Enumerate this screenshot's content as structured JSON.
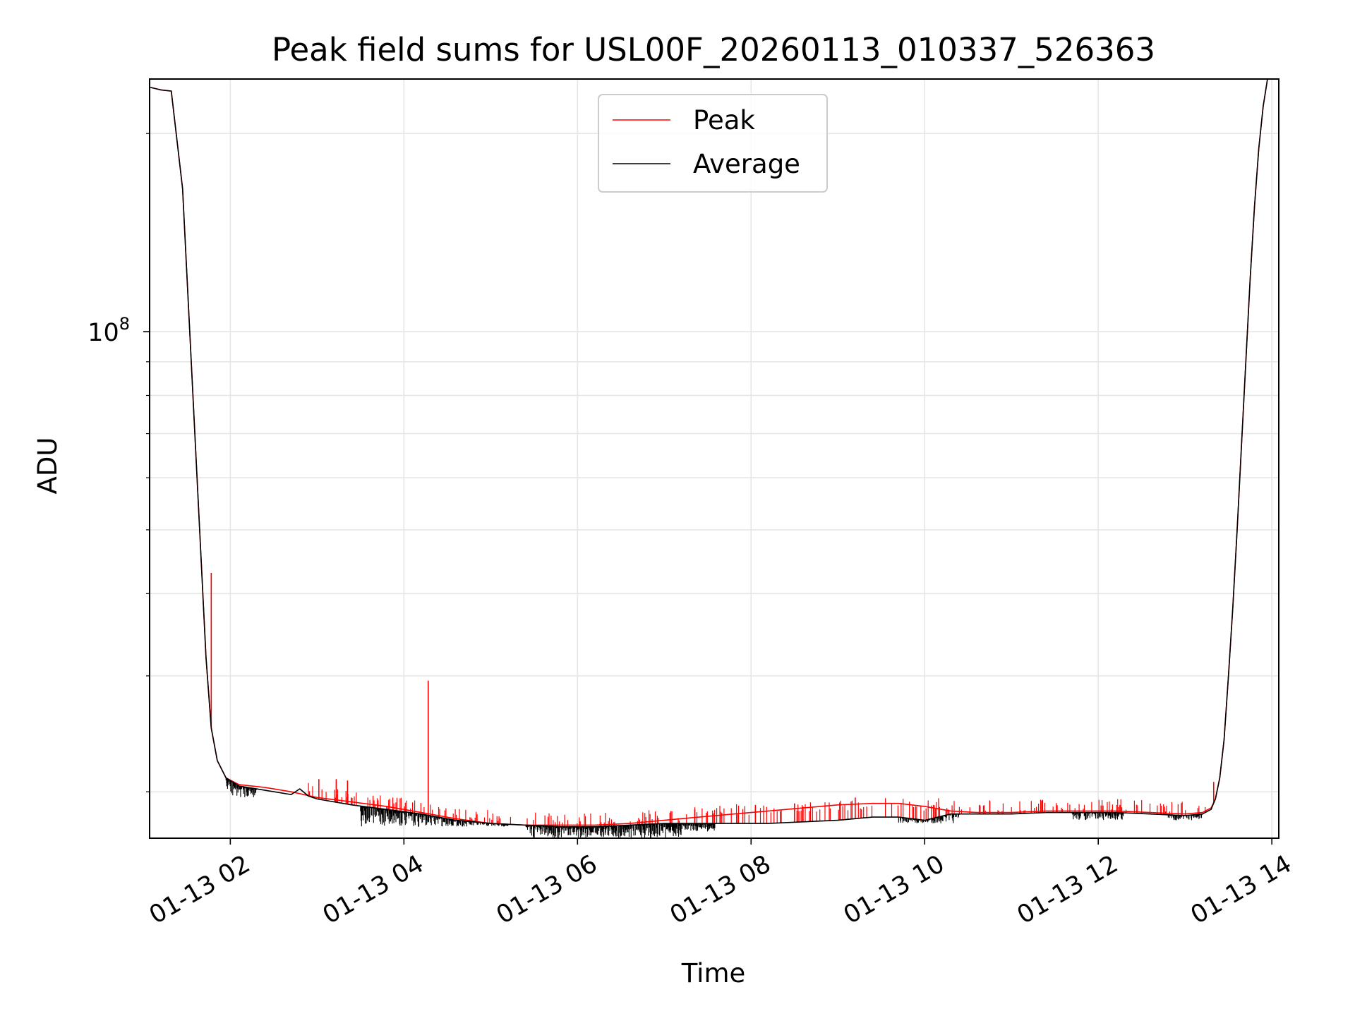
{
  "chart_data": {
    "type": "line",
    "title": "Peak field sums for USL00F_20260113_010337_526363",
    "xlabel": "Time",
    "ylabel": "ADU",
    "yscale": "log",
    "xlim": [
      1.07,
      14.08
    ],
    "ylim": [
      17000000.0,
      242000000.0
    ],
    "x_unit": "hours since 2026-01-13 00:00",
    "xticks": [
      {
        "value": 2,
        "label": "01-13 02"
      },
      {
        "value": 4,
        "label": "01-13 04"
      },
      {
        "value": 6,
        "label": "01-13 06"
      },
      {
        "value": 8,
        "label": "01-13 08"
      },
      {
        "value": 10,
        "label": "01-13 10"
      },
      {
        "value": 12,
        "label": "01-13 12"
      },
      {
        "value": 14,
        "label": "01-13 14"
      }
    ],
    "yticks_major": [
      {
        "value": 100000000,
        "base": "10",
        "exp": "8"
      }
    ],
    "yticks_minor": [
      20000000.0,
      30000000.0,
      40000000.0,
      50000000.0,
      60000000.0,
      70000000.0,
      80000000.0,
      90000000.0,
      200000000.0
    ],
    "grid": true,
    "legend": {
      "position": "upper center",
      "entries": [
        "Peak",
        "Average"
      ]
    },
    "series": [
      {
        "name": "Peak",
        "color": "#ff0000",
        "x": [
          1.08,
          1.2,
          1.32,
          1.45,
          1.55,
          1.65,
          1.72,
          1.78,
          1.85,
          1.95,
          2.1,
          2.4,
          2.7,
          3.0,
          3.4,
          3.8,
          4.2,
          4.6,
          5.0,
          5.4,
          5.8,
          6.2,
          6.6,
          7.0,
          7.4,
          7.8,
          8.2,
          8.6,
          9.0,
          9.4,
          9.7,
          10.0,
          10.3,
          10.6,
          11.0,
          11.4,
          11.8,
          12.2,
          12.6,
          13.0,
          13.2,
          13.3,
          13.35,
          13.4,
          13.45,
          13.5,
          13.55,
          13.6,
          13.65,
          13.7,
          13.75,
          13.8,
          13.85,
          13.9,
          13.95
        ],
        "values": [
          235000000,
          233000000,
          232000000,
          165000000,
          90000000,
          49000000,
          32000000,
          25000000,
          22300000,
          21000000,
          20500000,
          20300000,
          20000000,
          19600000,
          19300000,
          19000000,
          18600000,
          18200000,
          17900000,
          17800000,
          17800000,
          17800000,
          17900000,
          18100000,
          18300000,
          18500000,
          18700000,
          18900000,
          19100000,
          19200000,
          19200000,
          19000000,
          18700000,
          18600000,
          18600000,
          18700000,
          18700000,
          18700000,
          18600000,
          18500000,
          18600000,
          18900000,
          19500000,
          21000000,
          24000000,
          30000000,
          38000000,
          50000000,
          67000000,
          90000000,
          120000000,
          155000000,
          190000000,
          220000000,
          242000000
        ],
        "spikes": [
          {
            "x": 1.78,
            "value": 43000000
          },
          {
            "x": 4.28,
            "value": 29500000
          },
          {
            "x": 3.02,
            "value": 20900000
          },
          {
            "x": 3.22,
            "value": 20900000
          },
          {
            "x": 3.35,
            "value": 20800000
          },
          {
            "x": 7.35,
            "value": 18800000
          },
          {
            "x": 8.05,
            "value": 19100000
          },
          {
            "x": 8.5,
            "value": 19200000
          },
          {
            "x": 9.2,
            "value": 19600000
          },
          {
            "x": 10.75,
            "value": 19400000
          },
          {
            "x": 11.35,
            "value": 19400000
          },
          {
            "x": 12.25,
            "value": 19100000
          },
          {
            "x": 13.33,
            "value": 20700000
          }
        ]
      },
      {
        "name": "Average",
        "color": "#000000",
        "x": [
          1.08,
          1.2,
          1.32,
          1.45,
          1.55,
          1.65,
          1.72,
          1.78,
          1.85,
          1.95,
          2.1,
          2.4,
          2.7,
          2.8,
          2.9,
          3.0,
          3.4,
          3.8,
          4.2,
          4.6,
          5.0,
          5.4,
          5.8,
          6.2,
          6.6,
          7.0,
          7.4,
          7.8,
          8.2,
          8.6,
          9.0,
          9.4,
          9.7,
          10.0,
          10.3,
          10.6,
          11.0,
          11.4,
          11.8,
          12.2,
          12.6,
          13.0,
          13.2,
          13.3,
          13.35,
          13.4,
          13.45,
          13.5,
          13.55,
          13.6,
          13.65,
          13.7,
          13.75,
          13.8,
          13.85,
          13.9,
          13.95
        ],
        "values": [
          235000000,
          233000000,
          232000000,
          165000000,
          90000000,
          49000000,
          32000000,
          25000000,
          22300000,
          21000000,
          20400000,
          20100000,
          19800000,
          20200000,
          19700000,
          19500000,
          19100000,
          18800000,
          18500000,
          18100000,
          17900000,
          17800000,
          17700000,
          17700000,
          17800000,
          17900000,
          17900000,
          17900000,
          17900000,
          18000000,
          18100000,
          18300000,
          18300000,
          18100000,
          18500000,
          18500000,
          18500000,
          18600000,
          18600000,
          18600000,
          18500000,
          18400000,
          18500000,
          18800000,
          19500000,
          21000000,
          24000000,
          30000000,
          38000000,
          50000000,
          67000000,
          90000000,
          120000000,
          155000000,
          190000000,
          220000000,
          242000000
        ],
        "noise_band": [
          {
            "x_start": 1.95,
            "x_end": 2.3,
            "low": 19600000
          },
          {
            "x_start": 3.5,
            "x_end": 5.2,
            "low": 17700000
          },
          {
            "x_start": 5.4,
            "x_end": 7.2,
            "low": 17000000
          },
          {
            "x_start": 7.0,
            "x_end": 7.6,
            "low": 17400000
          },
          {
            "x_start": 9.7,
            "x_end": 10.4,
            "low": 17900000
          },
          {
            "x_start": 11.7,
            "x_end": 12.3,
            "low": 18100000
          },
          {
            "x_start": 12.8,
            "x_end": 13.2,
            "low": 18100000
          }
        ]
      }
    ]
  }
}
